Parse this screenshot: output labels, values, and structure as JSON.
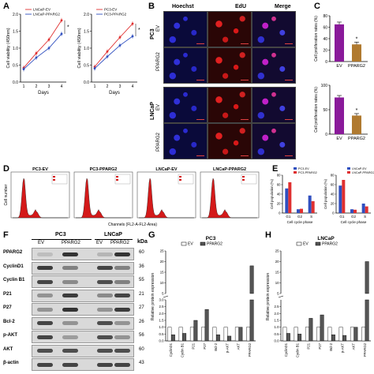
{
  "panels": {
    "A": {
      "letter": "A",
      "charts": [
        {
          "type": "line",
          "legend": [
            "LNCaP-EV",
            "LNCaP-PPARG2"
          ],
          "ylabel": "Cell viability (450nm)",
          "xlabel": "Days",
          "x": [
            1,
            2,
            3,
            4
          ],
          "ylim": [
            0.0,
            2.0
          ],
          "yticks": [
            "0.0",
            "0.5",
            "1.0",
            "1.5",
            "2.0"
          ],
          "series": [
            {
              "name": "LNCaP-EV",
              "values": [
                0.42,
                0.85,
                1.25,
                1.82
              ],
              "color": "#e03030"
            },
            {
              "name": "LNCaP-PPARG2",
              "values": [
                0.38,
                0.72,
                1.0,
                1.42
              ],
              "color": "#3050c0"
            }
          ],
          "sig": "*"
        },
        {
          "type": "line",
          "legend": [
            "PC3-EV",
            "PC3-PPARG2"
          ],
          "ylabel": "Cell viability (450nm)",
          "xlabel": "Days",
          "x": [
            1,
            2,
            3,
            4
          ],
          "ylim": [
            0.0,
            2.0
          ],
          "yticks": [
            "0.0",
            "0.5",
            "1.0",
            "1.5",
            "2.0"
          ],
          "series": [
            {
              "name": "PC3-EV",
              "values": [
                0.45,
                0.9,
                1.32,
                1.72
              ],
              "color": "#e03030"
            },
            {
              "name": "PC3-PPARG2",
              "values": [
                0.4,
                0.75,
                1.08,
                1.35
              ],
              "color": "#3050c0"
            }
          ],
          "sig": "*"
        }
      ]
    },
    "B": {
      "letter": "B",
      "columns": [
        "Hoechst",
        "EdU",
        "Merge"
      ],
      "groups": [
        "PC3",
        "LNCaP"
      ],
      "rows": [
        "EV",
        "PPARG2"
      ]
    },
    "C": {
      "letter": "C",
      "charts": [
        {
          "type": "bar",
          "ylabel": "Cell proliferation rates (%)",
          "categories": [
            "EV",
            "PPARG2"
          ],
          "values": [
            65,
            30
          ],
          "errors": [
            4,
            4
          ],
          "ylim": [
            0,
            80
          ],
          "yticks": [
            "0",
            "20",
            "40",
            "60",
            "80"
          ],
          "colors": [
            "#8a1a9a",
            "#b07a30"
          ],
          "sig": "*"
        },
        {
          "type": "bar",
          "ylabel": "Cell proliferation rates (%)",
          "categories": [
            "EV",
            "PPARG2"
          ],
          "values": [
            75,
            38
          ],
          "errors": [
            4,
            4
          ],
          "ylim": [
            0,
            100
          ],
          "yticks": [
            "0",
            "50",
            "100"
          ],
          "colors": [
            "#8a1a9a",
            "#b07a30"
          ],
          "sig": "*"
        }
      ]
    },
    "D": {
      "letter": "D",
      "ylabel": "Cell number",
      "xlabel": "Channels (FL2-A-FL2-Area)",
      "titles": [
        "PC3-EV",
        "PC3-PPARG2",
        "LNCaP-EV",
        "LNCaP-PPARG2"
      ]
    },
    "E": {
      "letter": "E",
      "charts": [
        {
          "type": "bar",
          "legend": [
            "PC3-EV",
            "PC3-PPARG2"
          ],
          "ylabel": "Cell population (%)",
          "xlabel": "Cell cycle phase",
          "categories": [
            "G1",
            "G2",
            "S"
          ],
          "ylim": [
            0,
            80
          ],
          "yticks": [
            "0",
            "20",
            "40",
            "60",
            "80"
          ],
          "series": [
            {
              "name": "PC3-EV",
              "values": [
                52,
                8,
                37
              ],
              "color": "#3050c0"
            },
            {
              "name": "PC3-PPARG2",
              "values": [
                65,
                9,
                25
              ],
              "color": "#e03030"
            }
          ]
        },
        {
          "type": "bar",
          "legend": [
            "LNCaP-EV",
            "LNCaP-PPARG2"
          ],
          "ylabel": "Cell population (%)",
          "xlabel": "Cell cycle phase",
          "categories": [
            "G1",
            "G2",
            "S"
          ],
          "ylim": [
            0,
            80
          ],
          "yticks": [
            "0",
            "20",
            "40",
            "60",
            "80"
          ],
          "series": [
            {
              "name": "LNCaP-EV",
              "values": [
                58,
                8,
                20
              ],
              "color": "#3050c0"
            },
            {
              "name": "LNCaP-PPARG2",
              "values": [
                70,
                7,
                14
              ],
              "color": "#e03030"
            }
          ]
        }
      ]
    },
    "F": {
      "letter": "F",
      "groups": [
        "PC3",
        "LNCaP"
      ],
      "lanes": [
        "EV",
        "PPARG2",
        "EV",
        "PPARG2"
      ],
      "kda_label": "kDa",
      "proteins": [
        "PPARG2",
        "CyclinD1",
        "Cyclin B1",
        "P21",
        "P27",
        "Bcl-2",
        "p-AKT",
        "AKT",
        "β-actin"
      ],
      "kda": [
        "60",
        "36",
        "55",
        "21",
        "27",
        "26",
        "56",
        "60",
        "43"
      ]
    },
    "G": {
      "letter": "G",
      "title": "PC3",
      "legend": [
        "EV",
        "PPARG2"
      ],
      "ylabel": "Relative protein expression",
      "categories": [
        "CyclinD1",
        "Cyclin B1",
        "P21",
        "P27",
        "Bcl-2",
        "p-AKT",
        "AKT",
        "PPARG2"
      ],
      "yticks": [
        "0.0",
        "0.5",
        "1.0",
        "1.5",
        "2.0",
        "2.5",
        "3.0",
        "5",
        "10",
        "15",
        "20",
        "25"
      ],
      "series": [
        {
          "name": "EV",
          "values": [
            1,
            1,
            1,
            1,
            1,
            1,
            1,
            1
          ]
        },
        {
          "name": "PPARG2",
          "values": [
            0.45,
            0.55,
            1.5,
            2.3,
            0.45,
            0.35,
            1.0,
            18
          ]
        }
      ]
    },
    "H": {
      "letter": "H",
      "title": "LNCaP",
      "legend": [
        "EV",
        "PPARG2"
      ],
      "ylabel": "Relative protein expression",
      "categories": [
        "CyclinD1",
        "Cyclin B1",
        "P21",
        "P27",
        "Bcl-2",
        "p-AKT",
        "AKT",
        "PPARG2"
      ],
      "yticks": [
        "0.0",
        "0.5",
        "1.0",
        "1.5",
        "2.0",
        "2.5",
        "5",
        "10",
        "15",
        "20",
        "25"
      ],
      "series": [
        {
          "name": "EV",
          "values": [
            1,
            1,
            1,
            1,
            1,
            1,
            1,
            1
          ]
        },
        {
          "name": "PPARG2",
          "values": [
            0.55,
            0.5,
            1.65,
            1.9,
            0.45,
            0.4,
            1.0,
            20
          ]
        }
      ]
    }
  }
}
